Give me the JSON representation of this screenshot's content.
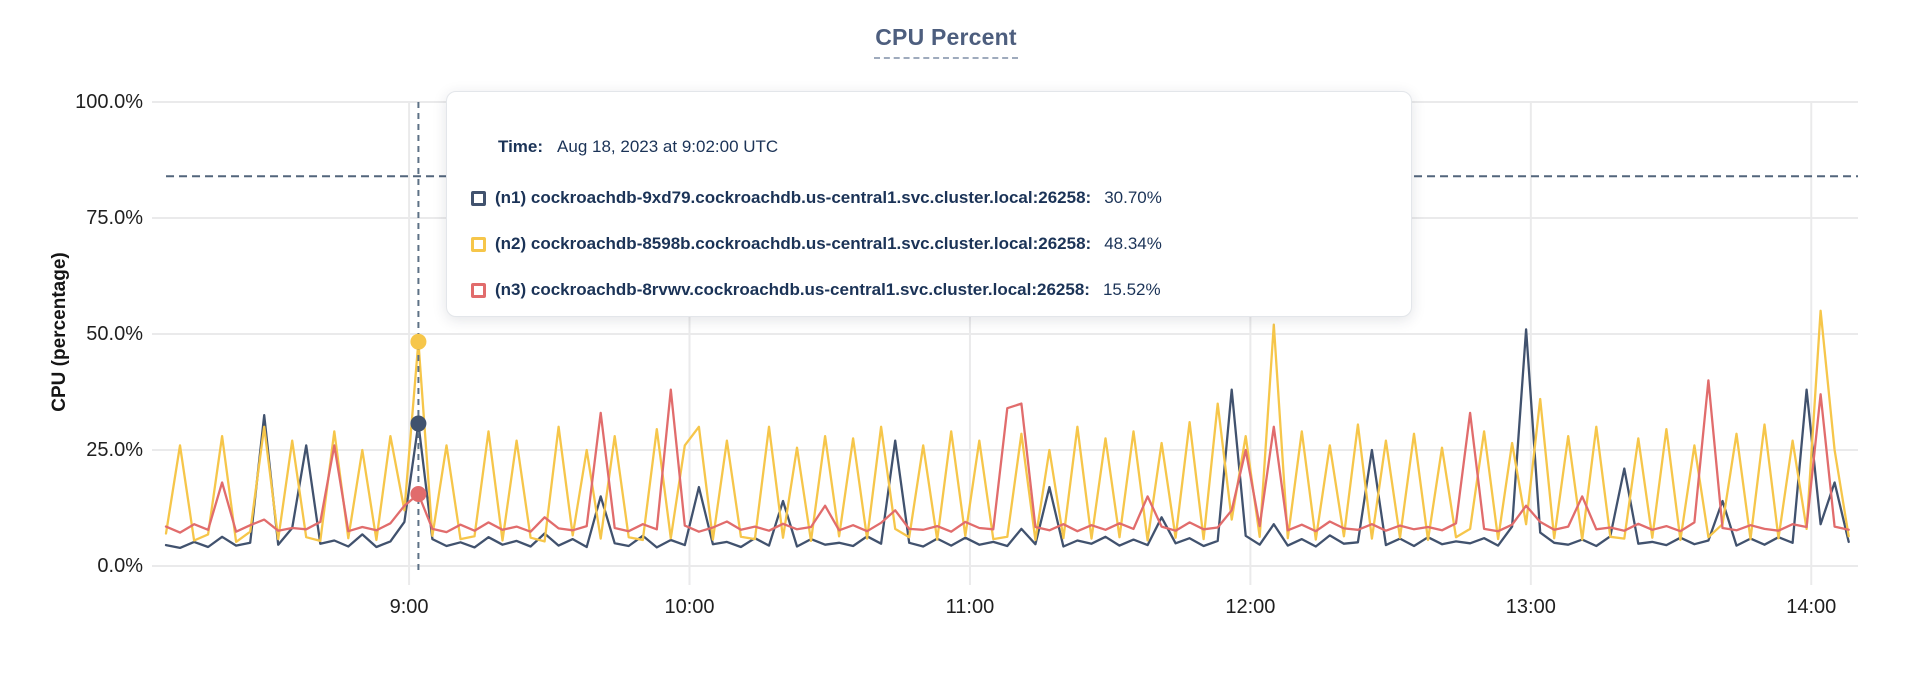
{
  "title": "CPU Percent",
  "y_axis": {
    "label": "CPU (percentage)"
  },
  "tooltip": {
    "time_label": "Time:",
    "time_value": "Aug 18, 2023 at 9:02:00 UTC",
    "rows": [
      {
        "label": "(n1) cockroachdb-9xd79.cockroachdb.us-central1.svc.cluster.local:26258:",
        "value": "30.70%"
      },
      {
        "label": "(n2) cockroachdb-8598b.cockroachdb.us-central1.svc.cluster.local:26258:",
        "value": "48.34%"
      },
      {
        "label": "(n3) cockroachdb-8rvwv.cockroachdb.us-central1.svc.cluster.local:26258:",
        "value": "15.52%"
      }
    ]
  },
  "chart_data": {
    "type": "line",
    "title": "CPU Percent",
    "xlabel": "",
    "ylabel": "CPU (percentage)",
    "ylim": [
      0,
      100
    ],
    "grid": true,
    "legend_position": "tooltip-overlay",
    "y_ticks": [
      {
        "value": 0,
        "label": "0.0%"
      },
      {
        "value": 25,
        "label": "25.0%"
      },
      {
        "value": 50,
        "label": "50.0%"
      },
      {
        "value": 75,
        "label": "75.0%"
      },
      {
        "value": 100,
        "label": "100.0%"
      }
    ],
    "x_ticks": [
      {
        "minutes": 540,
        "label": "9:00"
      },
      {
        "minutes": 600,
        "label": "10:00"
      },
      {
        "minutes": 660,
        "label": "11:00"
      },
      {
        "minutes": 720,
        "label": "12:00"
      },
      {
        "minutes": 780,
        "label": "13:00"
      },
      {
        "minutes": 840,
        "label": "14:00"
      }
    ],
    "x_domain_minutes": [
      485,
      850
    ],
    "x_minutes_start": 488,
    "x_minutes_step": 3,
    "threshold_percent": 84,
    "hover": {
      "time_minutes": 542,
      "time_text": "Aug 18, 2023 at 9:02:00 UTC",
      "values": [
        30.7,
        48.34,
        15.52
      ]
    },
    "series": [
      {
        "name": "(n1) cockroachdb-9xd79.cockroachdb.us-central1.svc.cluster.local:26258",
        "color": "#41526e",
        "hover_value_pct": 30.7,
        "values": [
          4.5,
          3.9,
          5.2,
          4.1,
          6.3,
          4.4,
          5.0,
          32.5,
          4.6,
          8.2,
          26.0,
          4.8,
          5.5,
          4.2,
          6.8,
          4.1,
          5.3,
          9.5,
          30.7,
          5.8,
          4.3,
          5.1,
          4.0,
          6.2,
          4.6,
          5.4,
          4.2,
          7.0,
          4.4,
          5.8,
          4.1,
          15.0,
          4.9,
          4.3,
          6.5,
          4.0,
          5.6,
          4.5,
          17.0,
          4.7,
          5.2,
          4.1,
          6.0,
          4.4,
          14.0,
          4.2,
          5.8,
          4.6,
          5.0,
          4.3,
          6.4,
          4.8,
          27.0,
          5.0,
          4.2,
          5.9,
          4.4,
          6.1,
          4.6,
          5.2,
          4.3,
          8.0,
          4.7,
          17.0,
          4.2,
          5.5,
          4.8,
          6.3,
          4.4,
          5.7,
          4.5,
          10.5,
          4.9,
          6.0,
          4.3,
          5.4,
          38.0,
          6.5,
          4.6,
          9.0,
          4.4,
          5.8,
          4.2,
          6.6,
          4.8,
          5.1,
          25.0,
          4.5,
          5.9,
          4.3,
          6.2,
          4.7,
          5.3,
          4.9,
          6.0,
          4.4,
          8.5,
          51.0,
          7.2,
          5.0,
          4.6,
          5.7,
          4.3,
          6.4,
          21.0,
          4.8,
          5.2,
          4.5,
          6.1,
          4.7,
          5.5,
          14.0,
          4.4,
          5.9,
          4.6,
          6.2,
          5.0,
          38.0,
          9.0,
          18.0,
          5.2
        ]
      },
      {
        "name": "(n2) cockroachdb-8598b.cockroachdb.us-central1.svc.cluster.local:26258",
        "color": "#f6c64a",
        "hover_value_pct": 48.34,
        "values": [
          7.0,
          26.0,
          5.5,
          6.8,
          28.0,
          5.2,
          7.4,
          30.0,
          5.8,
          27.0,
          6.2,
          5.4,
          29.0,
          6.0,
          25.0,
          5.6,
          28.0,
          12.0,
          48.34,
          6.5,
          26.0,
          5.8,
          6.4,
          29.0,
          5.5,
          27.0,
          6.1,
          5.3,
          30.0,
          6.6,
          25.0,
          5.9,
          28.0,
          6.2,
          5.6,
          29.5,
          6.0,
          26.0,
          30.0,
          5.7,
          27.0,
          6.3,
          5.8,
          30.0,
          6.1,
          25.5,
          5.4,
          28.0,
          6.4,
          27.5,
          5.9,
          30.0,
          8.0,
          6.2,
          26.0,
          5.7,
          29.0,
          6.5,
          27.0,
          5.8,
          6.3,
          28.5,
          5.6,
          25.0,
          6.0,
          30.0,
          5.9,
          27.5,
          6.2,
          29.0,
          5.5,
          26.5,
          6.1,
          31.0,
          5.8,
          35.0,
          10.0,
          28.0,
          6.3,
          52.0,
          6.0,
          29.0,
          5.7,
          26.0,
          6.4,
          30.5,
          5.9,
          27.0,
          6.1,
          28.5,
          5.6,
          25.5,
          6.2,
          8.0,
          29.0,
          5.8,
          26.5,
          9.0,
          36.0,
          6.0,
          28.0,
          5.7,
          30.0,
          6.3,
          5.9,
          27.5,
          6.1,
          29.5,
          5.6,
          26.0,
          6.2,
          9.0,
          28.5,
          5.8,
          30.5,
          6.0,
          27.0,
          8.0,
          55.0,
          25.0,
          6.4
        ]
      },
      {
        "name": "(n3) cockroachdb-8rvwv.cockroachdb.us-central1.svc.cluster.local:26258",
        "color": "#e16c6c",
        "hover_value_pct": 15.52,
        "values": [
          8.5,
          7.2,
          9.0,
          7.8,
          18.0,
          7.4,
          8.8,
          10.0,
          7.6,
          8.2,
          7.9,
          9.5,
          26.0,
          7.5,
          8.4,
          7.7,
          9.2,
          13.0,
          15.52,
          8.0,
          7.3,
          8.9,
          7.6,
          9.4,
          7.8,
          8.5,
          7.4,
          10.5,
          8.1,
          7.7,
          8.6,
          33.0,
          8.2,
          7.5,
          9.0,
          7.9,
          38.0,
          8.7,
          7.4,
          8.3,
          9.6,
          7.8,
          8.5,
          7.6,
          9.1,
          7.9,
          8.4,
          13.0,
          7.7,
          8.8,
          7.5,
          9.3,
          12.0,
          8.0,
          7.8,
          8.6,
          7.4,
          9.5,
          8.2,
          7.9,
          34.0,
          35.0,
          8.4,
          7.7,
          9.0,
          7.5,
          8.8,
          7.8,
          9.2,
          8.0,
          15.0,
          8.5,
          7.6,
          9.4,
          7.9,
          8.3,
          12.0,
          25.0,
          8.6,
          30.0,
          7.7,
          8.9,
          7.5,
          9.6,
          8.1,
          7.8,
          9.0,
          7.6,
          8.7,
          7.9,
          8.4,
          7.7,
          9.2,
          33.0,
          8.0,
          7.5,
          8.9,
          13.0,
          9.5,
          7.8,
          8.5,
          15.0,
          7.9,
          8.3,
          7.6,
          9.1,
          7.8,
          8.6,
          7.5,
          9.4,
          40.0,
          8.2,
          7.7,
          8.8,
          8.0,
          7.6,
          9.0,
          8.4,
          37.0,
          8.5,
          7.8
        ]
      }
    ]
  }
}
